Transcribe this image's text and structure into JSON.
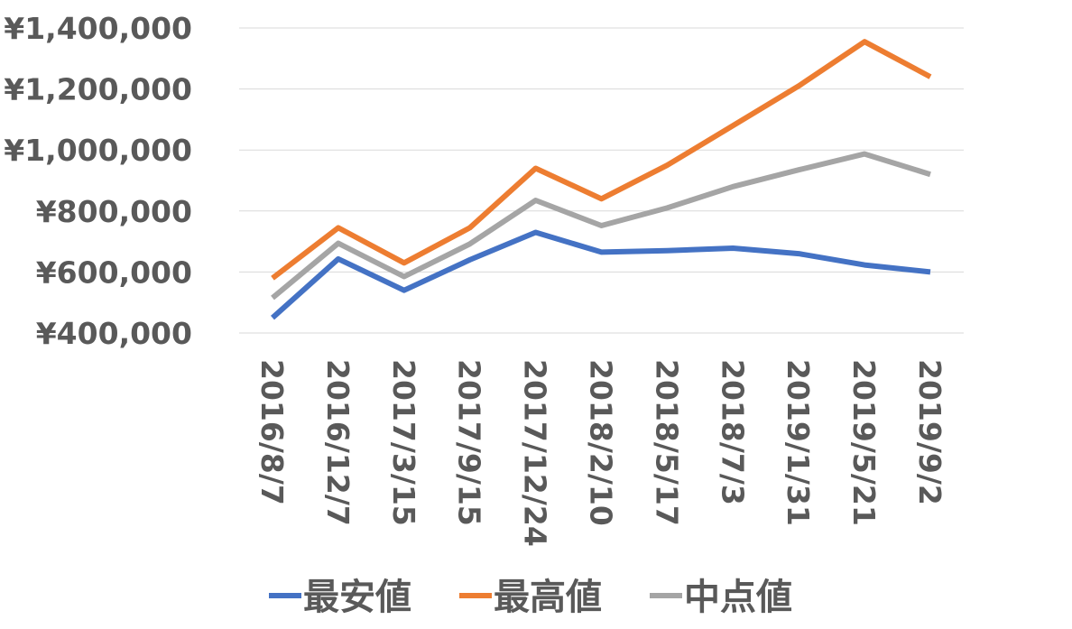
{
  "chart_data": {
    "type": "line",
    "title": "",
    "xlabel": "",
    "ylabel": "",
    "categories": [
      "2016/8/7",
      "2016/12/7",
      "2017/3/15",
      "2017/9/15",
      "2017/12/24",
      "2018/2/10",
      "2018/5/17",
      "2018/7/3",
      "2019/1/31",
      "2019/5/21",
      "2019/9/2"
    ],
    "ylim": [
      400000,
      1400000
    ],
    "yticks": [
      400000,
      600000,
      800000,
      1000000,
      1200000,
      1400000
    ],
    "ytick_labels": [
      "¥400,000",
      "¥600,000",
      "¥800,000",
      "¥1,000,000",
      "¥1,200,000",
      "¥1,400,000"
    ],
    "grid": true,
    "legend_position": "bottom",
    "series": [
      {
        "name": "最安値",
        "color": "#4472c4",
        "values": [
          450000,
          643000,
          540000,
          640000,
          730000,
          665000,
          670000,
          678000,
          660000,
          623000,
          600000
        ]
      },
      {
        "name": "最高値",
        "color": "#ed7d31",
        "values": [
          580000,
          745000,
          630000,
          745000,
          940000,
          840000,
          950000,
          1080000,
          1210000,
          1355000,
          1240000
        ]
      },
      {
        "name": "中点値",
        "color": "#a5a5a5",
        "values": [
          515000,
          694000,
          585000,
          692000,
          835000,
          752000,
          810000,
          880000,
          935000,
          987000,
          920000
        ]
      }
    ]
  }
}
